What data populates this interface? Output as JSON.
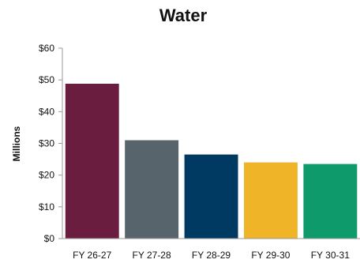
{
  "chart_data": {
    "type": "bar",
    "title": "Water",
    "xlabel": "",
    "ylabel": "Millions",
    "categories": [
      "FY 26-27",
      "FY 27-28",
      "FY 28-29",
      "FY 29-30",
      "FY 30-31"
    ],
    "values": [
      48.8,
      31.0,
      26.5,
      24.0,
      23.5
    ],
    "bar_colors": [
      "#6b1d40",
      "#58646b",
      "#003a63",
      "#f0b428",
      "#0e9a6a"
    ],
    "ylim": [
      0,
      60
    ],
    "yticks": [
      0,
      10,
      20,
      30,
      40,
      50,
      60
    ],
    "ytick_labels": [
      "$0",
      "$10",
      "$20",
      "$30",
      "$40",
      "$50",
      "$60"
    ],
    "grid": false,
    "legend": "none"
  }
}
